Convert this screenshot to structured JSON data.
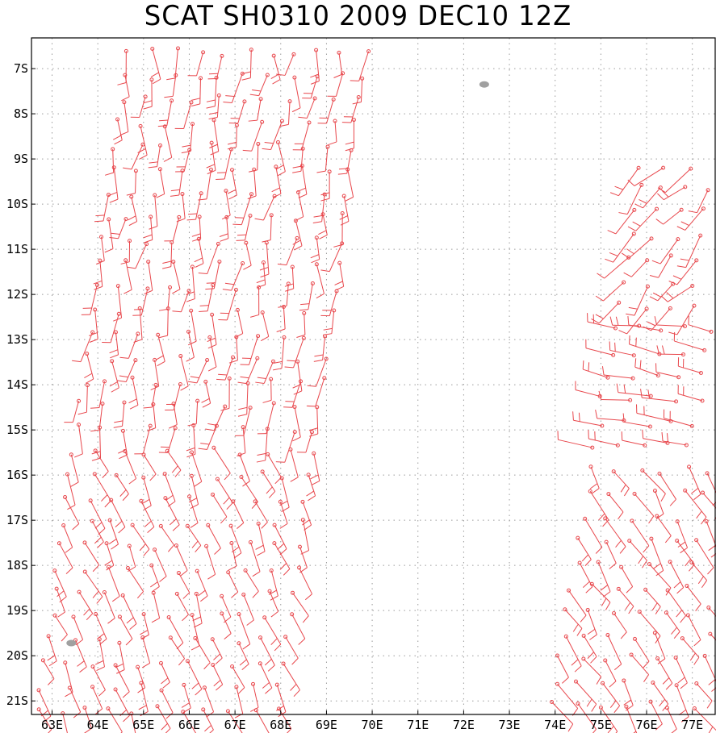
{
  "chart_data": {
    "type": "scatter",
    "subtype": "wind-barb-map",
    "title": "SCAT SH0310 2009 DEC10 12Z",
    "xlabel": "",
    "ylabel": "",
    "x_ticks": [
      "63E",
      "64E",
      "65E",
      "66E",
      "67E",
      "68E",
      "69E",
      "70E",
      "71E",
      "72E",
      "73E",
      "74E",
      "75E",
      "76E",
      "77E"
    ],
    "y_ticks": [
      "7S",
      "8S",
      "9S",
      "10S",
      "11S",
      "12S",
      "13S",
      "14S",
      "15S",
      "16S",
      "17S",
      "18S",
      "19S",
      "20S",
      "21S"
    ],
    "x_values": [
      63,
      64,
      65,
      66,
      67,
      68,
      69,
      70,
      71,
      72,
      73,
      74,
      75,
      76,
      77
    ],
    "y_values": [
      -7,
      -8,
      -9,
      -10,
      -11,
      -12,
      -13,
      -14,
      -15,
      -16,
      -17,
      -18,
      -19,
      -20,
      -21
    ],
    "xlim": [
      62.55,
      77.5
    ],
    "ylim": [
      -21.3,
      -6.32
    ],
    "grid": true,
    "colors": {
      "barb": "#e8474c",
      "land": "#a0a0a0",
      "grid": "#9a9a9a",
      "frame": "#000000"
    },
    "land": [
      {
        "name": "island-1",
        "lon": 72.45,
        "lat": -7.35
      },
      {
        "name": "island-2",
        "lon": 63.42,
        "lat": -19.72
      }
    ],
    "swaths": [
      {
        "name": "west-swath",
        "lon_min": 62.6,
        "lon_max": 69.9,
        "lat_top": -6.4,
        "lat_bottom": -21.3
      },
      {
        "name": "east-swath",
        "lon_min": 73.8,
        "lon_max": 77.5,
        "lat_top": -8.6,
        "lat_bottom": -21.3
      }
    ]
  }
}
